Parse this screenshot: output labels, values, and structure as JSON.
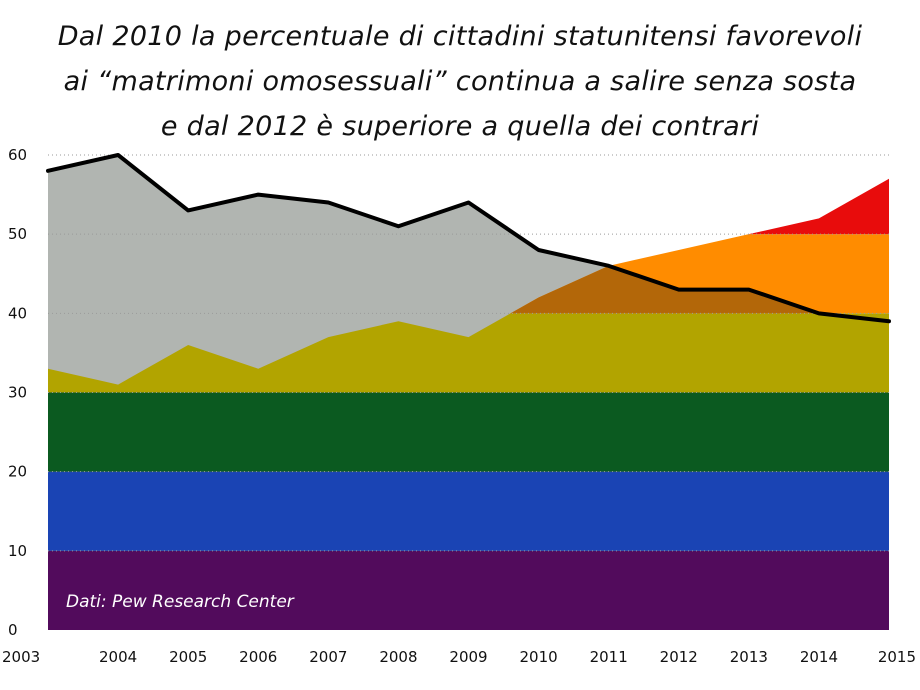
{
  "chart_data": {
    "type": "area",
    "title_lines": [
      "Dal 2010 la percentuale di cittadini statunitensi favorevoli",
      "ai “matrimoni omosessuali” continua a salire senza sosta",
      "e dal 2012 è superiore a quella dei contrari"
    ],
    "source": "Dati: Pew Research Center",
    "x": [
      2003,
      2004,
      2005,
      2006,
      2007,
      2008,
      2009,
      2010,
      2011,
      2012,
      2013,
      2014,
      2015
    ],
    "ylim": [
      0,
      60
    ],
    "yticks": [
      0,
      10,
      20,
      30,
      40,
      50,
      60
    ],
    "grid": "horizontal dotted",
    "series": [
      {
        "values": [
          33,
          31,
          36,
          33,
          37,
          39,
          37,
          42,
          46,
          48,
          50,
          52,
          57
        ],
        "style": "area filled with rainbow bands",
        "band_colors": [
          "#520b5c",
          "#1a44b4",
          "#0b5a20",
          "#b2a400",
          "#ffef00",
          "#ff8c00",
          "#e80c0c"
        ],
        "band_edges": [
          0,
          10,
          20,
          30,
          40,
          40,
          50,
          60
        ]
      },
      {
        "values": [
          58,
          60,
          53,
          55,
          54,
          51,
          54,
          48,
          46,
          43,
          43,
          40,
          39
        ],
        "style": "black line over grey area",
        "color": "#000000",
        "fill": "#b1b5b1"
      }
    ],
    "overlap_color": "#b36709"
  }
}
